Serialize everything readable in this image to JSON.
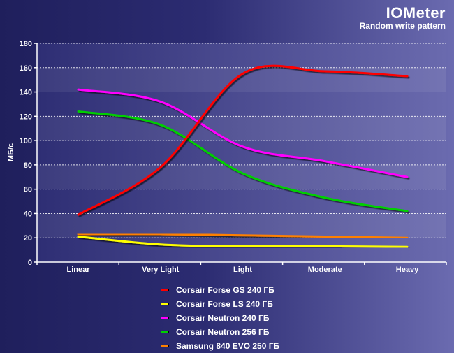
{
  "header": {
    "title": "IOMeter",
    "subtitle": "Random write pattern"
  },
  "chart_data": {
    "type": "line",
    "title": "IOMeter",
    "subtitle": "Random write pattern",
    "xlabel": "",
    "ylabel": "МБ/с",
    "categories": [
      "Linear",
      "Very Light",
      "Light",
      "Moderate",
      "Heavy"
    ],
    "ylim": [
      0,
      180
    ],
    "yticks": [
      0,
      20,
      40,
      60,
      80,
      100,
      120,
      140,
      160,
      180
    ],
    "grid": true,
    "legend_position": "bottom",
    "series": [
      {
        "name": "Corsair Forse GS 240 ГБ",
        "color": "#ff0000",
        "values": [
          39,
          78,
          155,
          157,
          153
        ]
      },
      {
        "name": "Corsair Forse LS 240 ГБ",
        "color": "#ffff00",
        "values": [
          21,
          14.5,
          13,
          13,
          12.5
        ]
      },
      {
        "name": "Corsair Neutron 240 ГБ",
        "color": "#ff00ff",
        "values": [
          142,
          132,
          95,
          83,
          70
        ]
      },
      {
        "name": "Corsair Neutron 256 ГБ",
        "color": "#00d000",
        "values": [
          124,
          113,
          73,
          53,
          42
        ]
      },
      {
        "name": "Samsung 840 EVO 250 ГБ",
        "color": "#ff8000",
        "values": [
          23,
          23,
          22,
          21,
          20
        ]
      }
    ]
  }
}
